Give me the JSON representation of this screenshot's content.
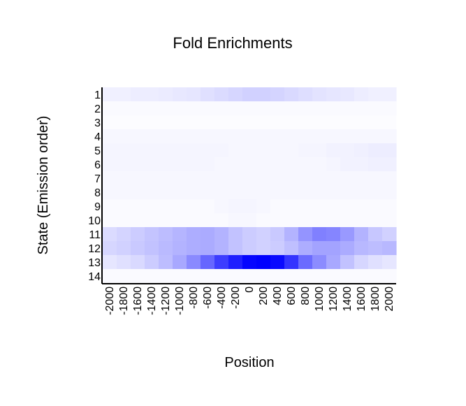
{
  "chart_data": {
    "type": "heatmap",
    "title": "Fold Enrichments",
    "xlabel": "Position",
    "ylabel": "State (Emission order)",
    "x": [
      "-2000",
      "-1800",
      "-1600",
      "-1400",
      "-1200",
      "-1000",
      "-800",
      "-600",
      "-400",
      "-200",
      "0",
      "200",
      "400",
      "600",
      "800",
      "1000",
      "1200",
      "1400",
      "1600",
      "1800",
      "2000"
    ],
    "y": [
      "1",
      "2",
      "3",
      "4",
      "5",
      "6",
      "7",
      "8",
      "9",
      "10",
      "11",
      "12",
      "13",
      "14"
    ],
    "x_tick_labels": [
      "-2000",
      "-1800",
      "-1600",
      "-1400",
      "-1200",
      "-1000",
      "-800",
      "-600",
      "-400",
      "-200",
      "0",
      "200",
      "400",
      "600",
      "800",
      "1000",
      "1200",
      "1400",
      "1600",
      "1800",
      "2000"
    ],
    "y_tick_labels": [
      "1",
      "2",
      "3",
      "4",
      "5",
      "6",
      "7",
      "8",
      "9",
      "10",
      "11",
      "12",
      "13",
      "14"
    ],
    "color_low": "#ffffff",
    "color_high": "#0000ff",
    "value_scale": "relative intensity 0 (white) to 1 (blue)",
    "values": [
      [
        0.06,
        0.06,
        0.07,
        0.07,
        0.08,
        0.09,
        0.1,
        0.12,
        0.14,
        0.16,
        0.18,
        0.18,
        0.17,
        0.15,
        0.13,
        0.11,
        0.1,
        0.09,
        0.07,
        0.06,
        0.06
      ],
      [
        0.02,
        0.02,
        0.02,
        0.02,
        0.02,
        0.02,
        0.02,
        0.02,
        0.02,
        0.02,
        0.02,
        0.02,
        0.02,
        0.02,
        0.02,
        0.02,
        0.02,
        0.02,
        0.02,
        0.02,
        0.02
      ],
      [
        0.01,
        0.01,
        0.01,
        0.01,
        0.01,
        0.01,
        0.01,
        0.01,
        0.01,
        0.01,
        0.01,
        0.01,
        0.01,
        0.01,
        0.01,
        0.01,
        0.01,
        0.01,
        0.01,
        0.01,
        0.01
      ],
      [
        0.03,
        0.03,
        0.03,
        0.03,
        0.03,
        0.03,
        0.03,
        0.03,
        0.03,
        0.03,
        0.03,
        0.03,
        0.03,
        0.03,
        0.03,
        0.03,
        0.03,
        0.03,
        0.03,
        0.03,
        0.03
      ],
      [
        0.04,
        0.04,
        0.04,
        0.04,
        0.04,
        0.04,
        0.04,
        0.04,
        0.04,
        0.03,
        0.03,
        0.03,
        0.03,
        0.03,
        0.04,
        0.04,
        0.05,
        0.05,
        0.06,
        0.07,
        0.07
      ],
      [
        0.04,
        0.04,
        0.04,
        0.04,
        0.04,
        0.04,
        0.04,
        0.04,
        0.03,
        0.03,
        0.03,
        0.03,
        0.03,
        0.03,
        0.03,
        0.03,
        0.04,
        0.05,
        0.05,
        0.06,
        0.06
      ],
      [
        0.03,
        0.03,
        0.03,
        0.03,
        0.03,
        0.03,
        0.03,
        0.03,
        0.03,
        0.03,
        0.03,
        0.03,
        0.03,
        0.03,
        0.03,
        0.03,
        0.03,
        0.03,
        0.03,
        0.03,
        0.03
      ],
      [
        0.03,
        0.03,
        0.03,
        0.03,
        0.03,
        0.03,
        0.03,
        0.03,
        0.03,
        0.03,
        0.03,
        0.03,
        0.03,
        0.03,
        0.03,
        0.03,
        0.03,
        0.03,
        0.03,
        0.03,
        0.03
      ],
      [
        0.02,
        0.02,
        0.02,
        0.02,
        0.02,
        0.02,
        0.02,
        0.02,
        0.03,
        0.04,
        0.04,
        0.03,
        0.02,
        0.02,
        0.02,
        0.02,
        0.02,
        0.02,
        0.02,
        0.02,
        0.02
      ],
      [
        0.02,
        0.02,
        0.02,
        0.02,
        0.02,
        0.02,
        0.02,
        0.02,
        0.02,
        0.03,
        0.03,
        0.02,
        0.02,
        0.02,
        0.02,
        0.02,
        0.02,
        0.02,
        0.02,
        0.02,
        0.02
      ],
      [
        0.14,
        0.17,
        0.2,
        0.23,
        0.26,
        0.29,
        0.32,
        0.33,
        0.3,
        0.24,
        0.2,
        0.18,
        0.21,
        0.3,
        0.42,
        0.5,
        0.48,
        0.4,
        0.3,
        0.22,
        0.18
      ],
      [
        0.16,
        0.18,
        0.21,
        0.24,
        0.27,
        0.3,
        0.32,
        0.33,
        0.3,
        0.24,
        0.2,
        0.18,
        0.2,
        0.25,
        0.32,
        0.36,
        0.36,
        0.33,
        0.28,
        0.26,
        0.28
      ],
      [
        0.1,
        0.12,
        0.15,
        0.2,
        0.26,
        0.34,
        0.46,
        0.6,
        0.76,
        0.88,
        0.98,
        1.0,
        0.96,
        0.8,
        0.58,
        0.45,
        0.34,
        0.24,
        0.16,
        0.12,
        0.1
      ],
      [
        0.02,
        0.02,
        0.02,
        0.02,
        0.02,
        0.02,
        0.02,
        0.02,
        0.02,
        0.02,
        0.02,
        0.02,
        0.02,
        0.02,
        0.02,
        0.02,
        0.02,
        0.02,
        0.02,
        0.02,
        0.02
      ]
    ]
  }
}
